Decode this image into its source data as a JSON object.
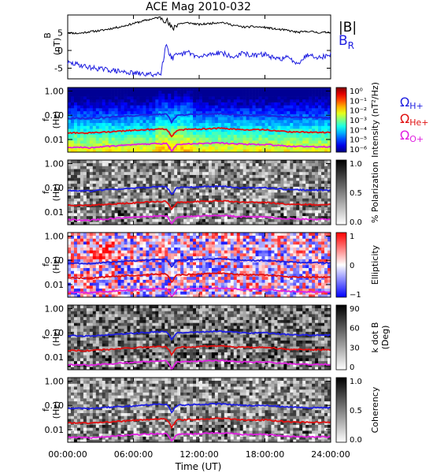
{
  "chart_data": {
    "type": "line",
    "title": "ACE Mag 2010-032",
    "xlabel": "Time (UT)",
    "x_ticks": [
      "00:00:00",
      "06:00:00",
      "12:00:00",
      "18:00:00",
      "24:00:00"
    ],
    "x_range_hours": [
      0,
      24
    ],
    "panels": [
      {
        "name": "b-field",
        "ylabel": [
          "B",
          "(nT)"
        ],
        "ylim": [
          -8,
          10
        ],
        "y_ticks": [
          {
            "value": 5,
            "label": "5"
          },
          {
            "value": 0,
            "label": "0"
          },
          {
            "value": -5,
            "label": "-5"
          }
        ],
        "series": [
          {
            "name": "|B|",
            "color": "#000000",
            "x": [
              0,
              1,
              2,
              3,
              4,
              5,
              6,
              7,
              8,
              8.5,
              9,
              9.5,
              10,
              11,
              12,
              13,
              14,
              15,
              16,
              17,
              18,
              19,
              20,
              21,
              22,
              23,
              24
            ],
            "y": [
              5.0,
              4.8,
              5.3,
              5.6,
              6.2,
              6.8,
              7.6,
              8.4,
              9.1,
              9.4,
              8.6,
              6.0,
              7.5,
              7.8,
              7.3,
              7.6,
              8.0,
              7.2,
              6.6,
              6.7,
              6.5,
              6.0,
              5.7,
              5.1,
              5.4,
              5.0,
              5.2
            ]
          },
          {
            "name": "BR",
            "color": "#1f1fe0",
            "x": [
              0,
              1,
              2,
              3,
              4,
              5,
              6,
              7,
              8,
              8.5,
              9,
              9.5,
              10,
              11,
              12,
              13,
              14,
              15,
              16,
              17,
              18,
              19,
              20,
              21,
              22,
              23,
              24
            ],
            "y": [
              -3.5,
              -4.0,
              -4.8,
              -5.2,
              -5.6,
              -6.0,
              -6.4,
              -6.7,
              -6.8,
              -6.0,
              2.0,
              -2.5,
              -1.5,
              -0.5,
              -2.0,
              -1.0,
              -0.5,
              -2.0,
              -0.8,
              -1.5,
              -1.0,
              -2.5,
              -2.0,
              -3.5,
              -1.0,
              -2.0,
              -1.2
            ]
          }
        ]
      },
      {
        "name": "intensity",
        "ylabel": [
          "f",
          "(Hz)"
        ],
        "y_ticks": [
          "1.00",
          "0.10",
          "0.01"
        ],
        "colorbar_label": "Intensity (nT²/Hz)",
        "colorbar_ticks": [
          "10⁰",
          "10⁻¹",
          "10⁻²",
          "10⁻³",
          "10⁻⁴",
          "10⁻⁵",
          "10⁻⁶"
        ]
      },
      {
        "name": "polarization",
        "ylabel": [
          "f",
          "(Hz)"
        ],
        "y_ticks": [
          "1.00",
          "0.10",
          "0.01"
        ],
        "colorbar_label": "% Polarization",
        "colorbar_ticks": [
          "1.0",
          "0.5",
          "0.0"
        ]
      },
      {
        "name": "ellipticity",
        "ylabel": [
          "f",
          "(Hz)"
        ],
        "y_ticks": [
          "1.00",
          "0.10",
          "0.01"
        ],
        "colorbar_label": "Ellipticity",
        "colorbar_ticks": [
          "1",
          "0",
          "−1"
        ]
      },
      {
        "name": "k-dot-b",
        "ylabel": [
          "f",
          "(Hz)"
        ],
        "y_ticks": [
          "1.00",
          "0.10",
          "0.01"
        ],
        "colorbar_label": [
          "k dot B",
          "(Deg)"
        ],
        "colorbar_ticks": [
          "90",
          "60",
          "30",
          "0"
        ]
      },
      {
        "name": "coherency",
        "ylabel": [
          "f",
          "(Hz)"
        ],
        "y_ticks": [
          "1.00",
          "0.10",
          "0.01"
        ],
        "colorbar_label": "Coherency",
        "colorbar_ticks": [
          "1.0",
          "0.5",
          "0.0"
        ]
      }
    ],
    "gyrofrequency_lines": [
      {
        "name": "ΩH+",
        "color": "#1f1fe0",
        "x": [
          0,
          2,
          4,
          6,
          8,
          9,
          9.5,
          10,
          12,
          14,
          16,
          18,
          20,
          22,
          24
        ],
        "y": [
          0.076,
          0.074,
          0.085,
          0.095,
          0.11,
          0.11,
          0.05,
          0.1,
          0.11,
          0.115,
          0.1,
          0.1,
          0.085,
          0.08,
          0.08
        ]
      },
      {
        "name": "ΩHe+",
        "color": "#e01010",
        "x": [
          0,
          2,
          4,
          6,
          8,
          9,
          9.5,
          10,
          12,
          14,
          16,
          18,
          20,
          22,
          24
        ],
        "y": [
          0.019,
          0.0185,
          0.021,
          0.024,
          0.027,
          0.027,
          0.012,
          0.025,
          0.027,
          0.029,
          0.025,
          0.025,
          0.021,
          0.02,
          0.02
        ]
      },
      {
        "name": "ΩO+",
        "color": "#e020e0",
        "x": [
          0,
          2,
          4,
          6,
          8,
          9,
          9.5,
          10,
          12,
          14,
          16,
          18,
          20,
          22,
          24
        ],
        "y": [
          0.0048,
          0.0046,
          0.0053,
          0.006,
          0.0068,
          0.0068,
          0.0031,
          0.0063,
          0.0068,
          0.0072,
          0.0063,
          0.0063,
          0.0053,
          0.005,
          0.005
        ]
      }
    ],
    "freq_range_hz": [
      0.003,
      1.4
    ],
    "legend": {
      "b_panel": [
        {
          "label": "|B|",
          "color": "#000000"
        },
        {
          "label": "B",
          "sub": "R",
          "color": "#1f1fe0"
        }
      ],
      "spectra": [
        {
          "label": "Ω",
          "sub": "H+",
          "color": "#1f1fe0"
        },
        {
          "label": "Ω",
          "sub": "He+",
          "color": "#e01010"
        },
        {
          "label": "Ω",
          "sub": "O+",
          "color": "#e020e0"
        }
      ]
    }
  }
}
